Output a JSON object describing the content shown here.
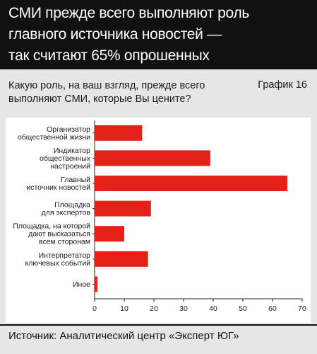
{
  "header": {
    "lines": [
      "СМИ прежде всего выполняют роль",
      "главного источника новостей —",
      "так считают 65% опрошенных"
    ]
  },
  "question": {
    "lines": [
      "Какую роль, на ваш взгляд, прежде всего",
      "выполняют СМИ, которые Вы цените?"
    ]
  },
  "chart_number": "График 16",
  "footer": {
    "source": "Источник: Аналитический центр «Эксперт ЮГ»"
  },
  "colors": {
    "bar": "#e32119",
    "header_bg": "#111111",
    "page_bg": "#e6e6e6"
  },
  "chart_data": {
    "type": "bar",
    "orientation": "horizontal",
    "categories": [
      [
        "Организатор",
        "общественной жизни"
      ],
      [
        "Индикатор",
        "общественных",
        "настроений"
      ],
      [
        "Главный",
        "источник новостей"
      ],
      [
        "Площадка",
        "для экспертов"
      ],
      [
        "Площадка, на которой",
        "дают высказаться",
        "всем сторонам"
      ],
      [
        "Интерпретатор",
        "ключевых событий"
      ],
      [
        "Иное"
      ]
    ],
    "values": [
      16,
      39,
      65,
      19,
      10,
      18,
      1
    ],
    "xlim": [
      0,
      70
    ],
    "xticks": [
      0,
      10,
      20,
      30,
      40,
      50,
      60,
      70
    ],
    "grid": false
  }
}
